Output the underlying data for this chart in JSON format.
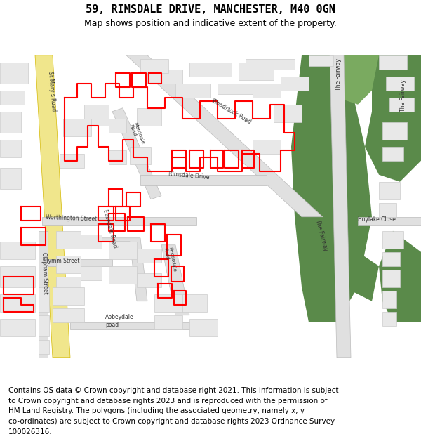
{
  "title": "59, RIMSDALE DRIVE, MANCHESTER, M40 0GN",
  "subtitle": "Map shows position and indicative extent of the property.",
  "footer_lines": [
    "Contains OS data © Crown copyright and database right 2021. This information is subject",
    "to Crown copyright and database rights 2023 and is reproduced with the permission of",
    "HM Land Registry. The polygons (including the associated geometry, namely x, y",
    "co-ordinates) are subject to Crown copyright and database rights 2023 Ordnance Survey",
    "100026316."
  ],
  "map_bg": "#ffffff",
  "building_color": "#e8e8e8",
  "building_outline": "#cccccc",
  "green_color": "#5a8a4a",
  "yellow_road": "#f0e68c",
  "road_color": "#e0e0e0",
  "red_boundary": "#ff0000",
  "title_fontsize": 11,
  "subtitle_fontsize": 9,
  "footer_fontsize": 7.5
}
